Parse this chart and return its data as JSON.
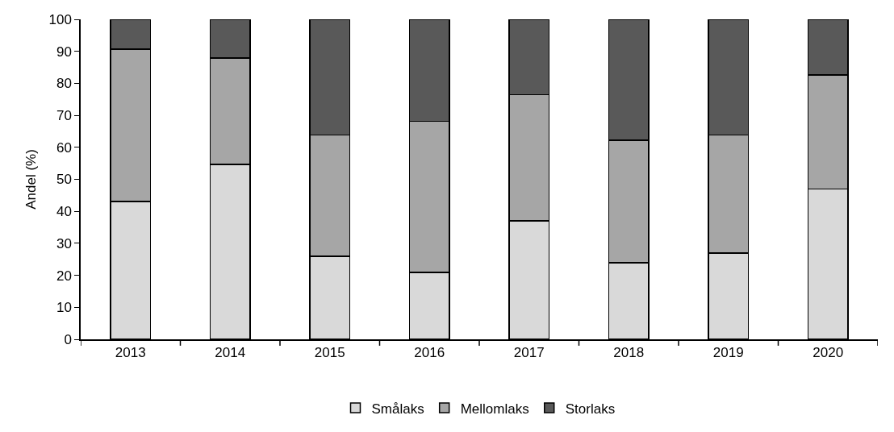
{
  "chart_data": {
    "type": "bar",
    "stacked": true,
    "ylabel": "Andel (%)",
    "categories": [
      "2013",
      "2014",
      "2015",
      "2016",
      "2017",
      "2018",
      "2019",
      "2020"
    ],
    "series": [
      {
        "name": "Smålaks",
        "color": "#d9d9d9",
        "values": [
          43.1,
          54.7,
          25.9,
          20.9,
          37.0,
          23.9,
          27.0,
          47.0
        ]
      },
      {
        "name": "Mellomlaks",
        "color": "#a6a6a6",
        "values": [
          47.6,
          33.2,
          37.9,
          47.3,
          39.4,
          38.3,
          36.9,
          35.6
        ]
      },
      {
        "name": "Storlaks",
        "color": "#595959",
        "values": [
          9.3,
          12.1,
          36.2,
          31.8,
          23.6,
          37.8,
          36.1,
          17.4
        ]
      }
    ],
    "ylim": [
      0,
      100
    ],
    "yticks": [
      0,
      10,
      20,
      30,
      40,
      50,
      60,
      70,
      80,
      90,
      100
    ],
    "grid": false,
    "legend": "bottom"
  }
}
